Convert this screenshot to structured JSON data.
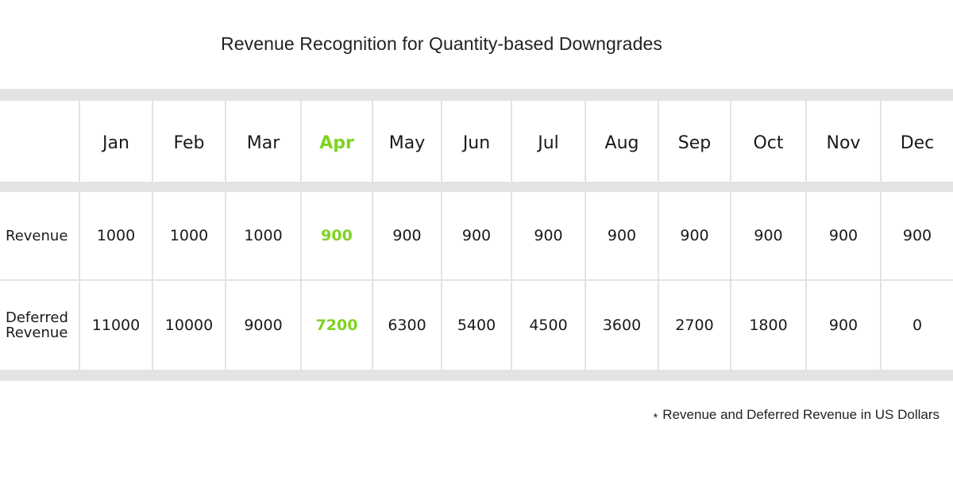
{
  "title": "Revenue Recognition for Quantity-based Downgrades",
  "colors": {
    "highlight": "#7ed321",
    "band": "#e3e3e3",
    "text": "#1a1a1a"
  },
  "chart_data": {
    "type": "table",
    "title": "Revenue Recognition for Quantity-based Downgrades",
    "columns": [
      "Jan",
      "Feb",
      "Mar",
      "Apr",
      "May",
      "Jun",
      "Jul",
      "Aug",
      "Sep",
      "Oct",
      "Nov",
      "Dec"
    ],
    "highlight_column": "Apr",
    "rows": [
      {
        "label": "Revenue",
        "values": [
          "1000",
          "1000",
          "1000",
          "900",
          "900",
          "900",
          "900",
          "900",
          "900",
          "900",
          "900",
          "900"
        ]
      },
      {
        "label": "Deferred\nRevenue",
        "values": [
          "11000",
          "10000",
          "9000",
          "7200",
          "6300",
          "5400",
          "4500",
          "3600",
          "2700",
          "1800",
          "900",
          "0"
        ]
      }
    ]
  },
  "footnote": {
    "marker": "*",
    "text": "Revenue and Deferred Revenue in US Dollars"
  }
}
